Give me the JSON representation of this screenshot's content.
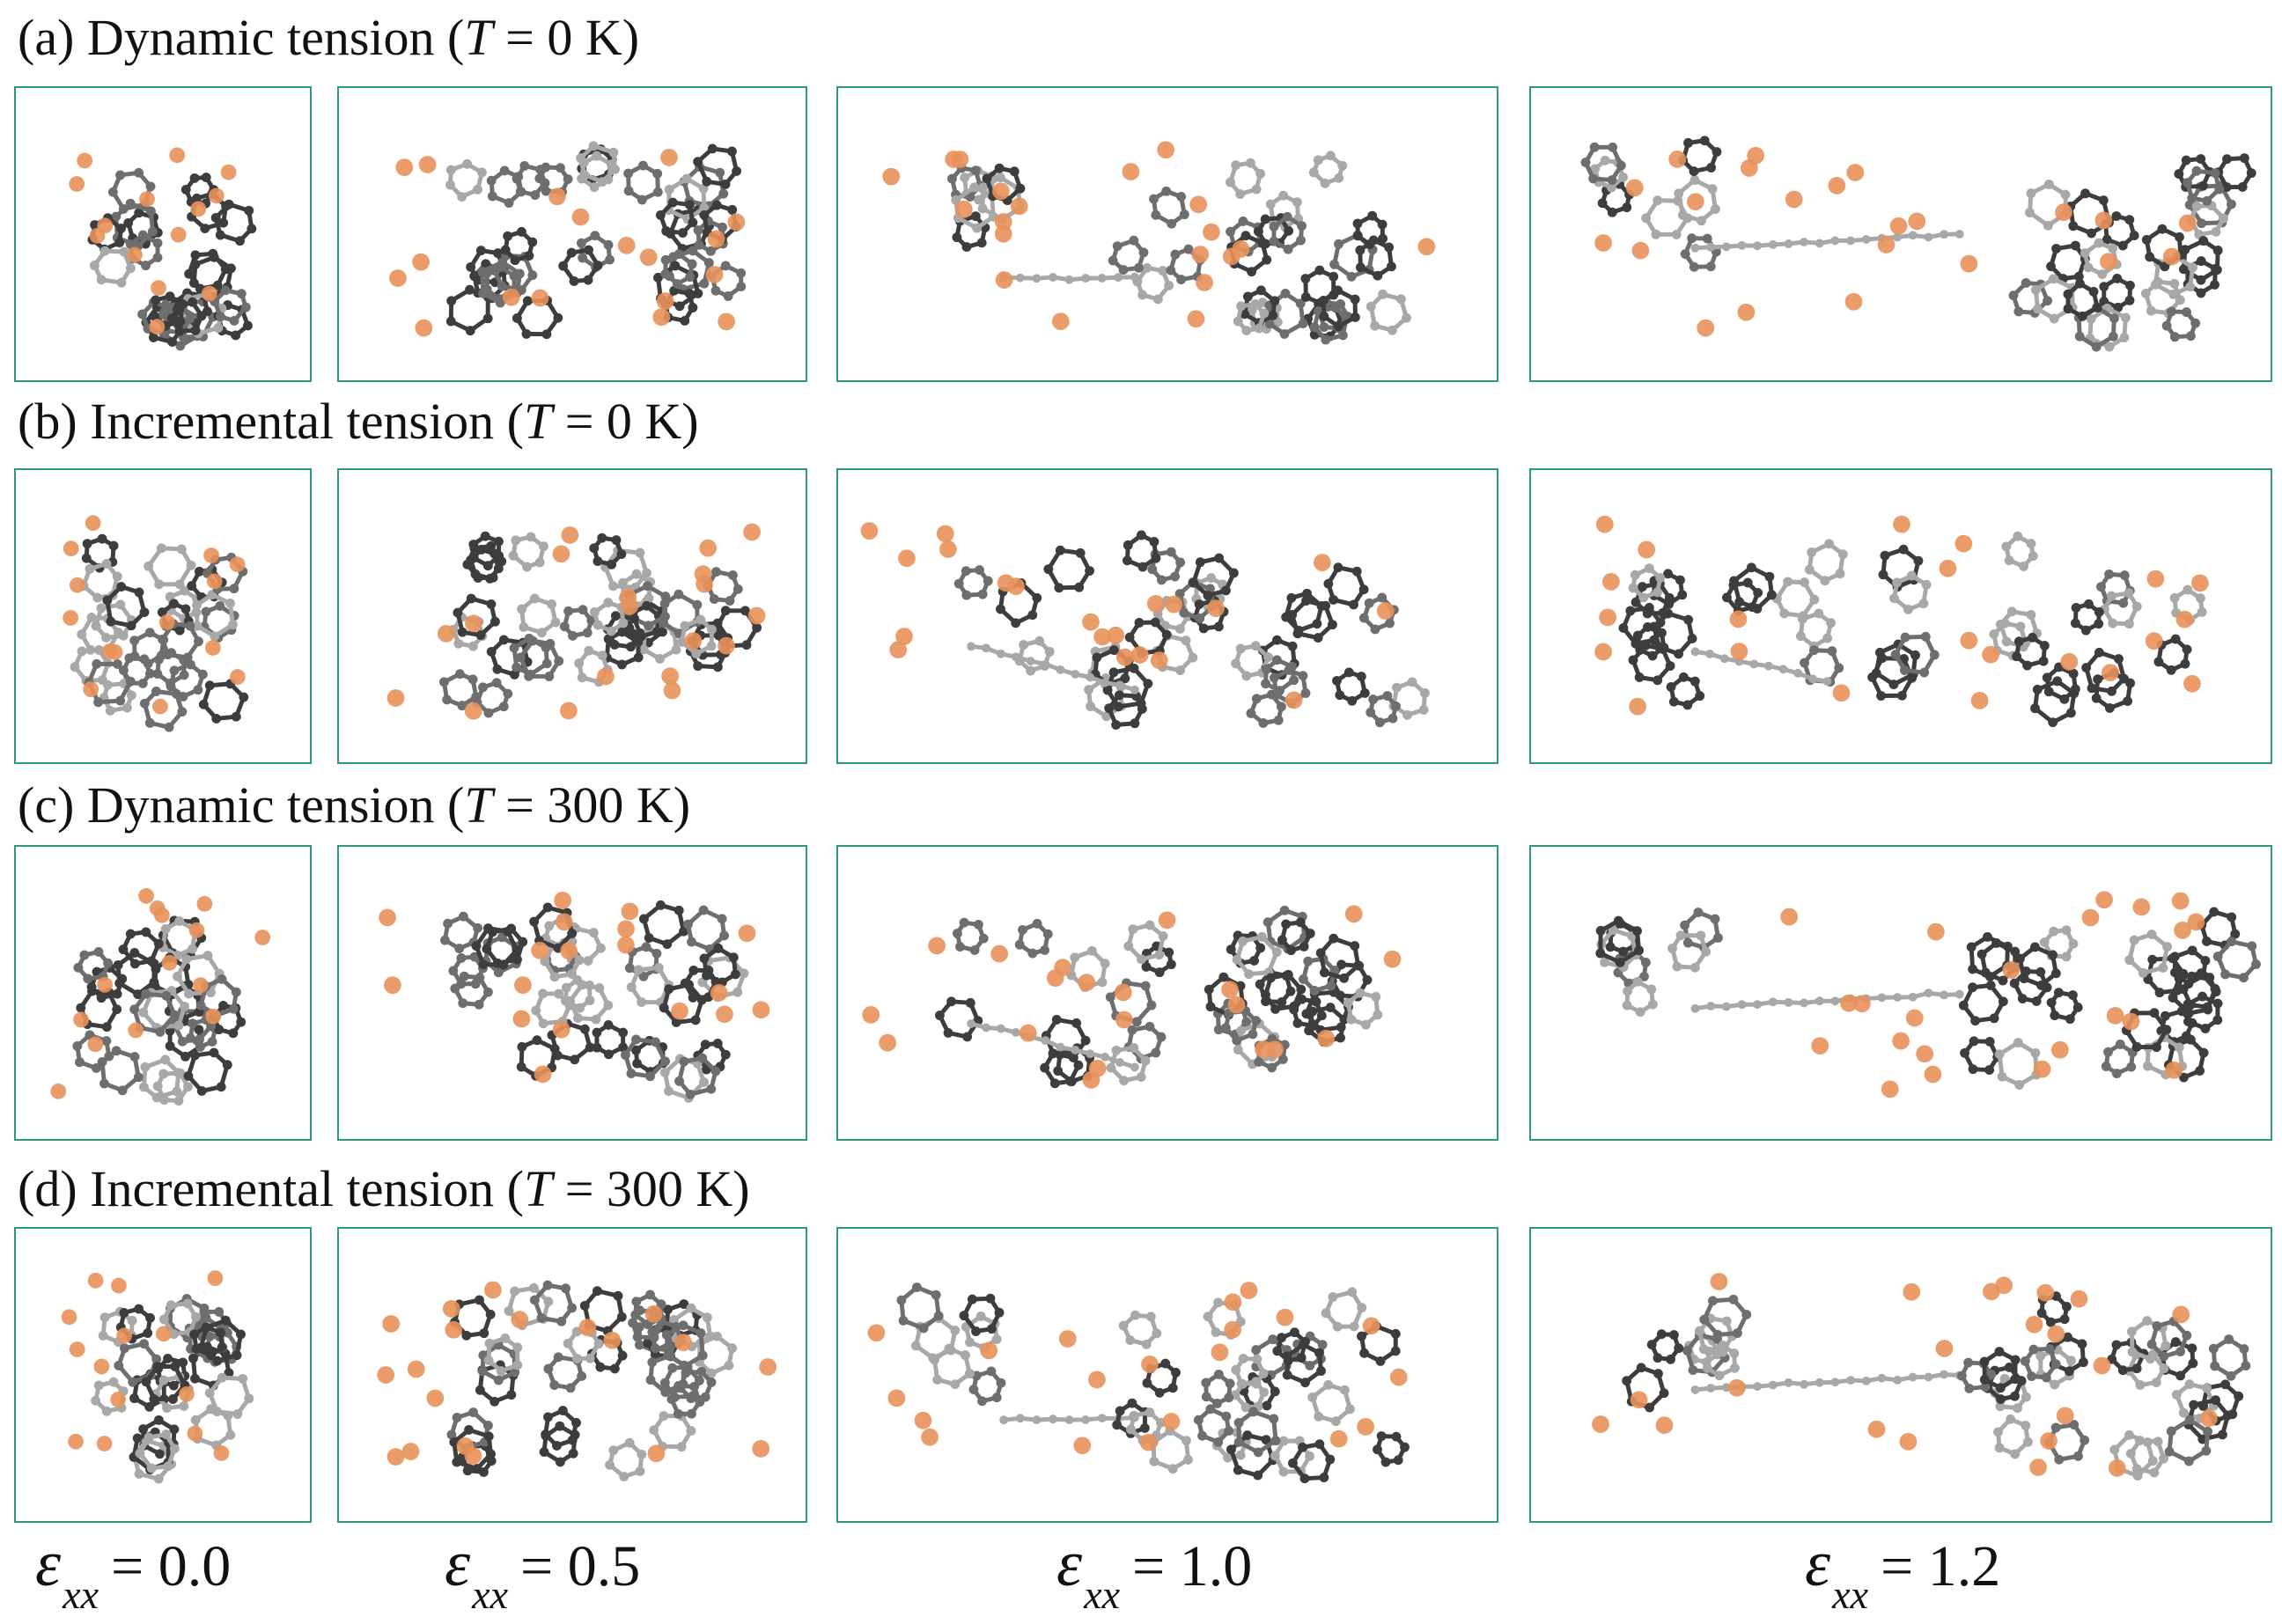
{
  "figure": {
    "rows": [
      {
        "label": "(a) Dynamic tension (",
        "temp_symbol": "T",
        "temp_rest": " = 0 K)",
        "mode": "dynamic",
        "temperature_K": 0
      },
      {
        "label": "(b) Incremental tension (",
        "temp_symbol": "T",
        "temp_rest": " = 0 K)",
        "mode": "incremental",
        "temperature_K": 0
      },
      {
        "label": "(c) Dynamic tension (",
        "temp_symbol": "T",
        "temp_rest": " = 300 K)",
        "mode": "dynamic",
        "temperature_K": 300
      },
      {
        "label": "(d) Incremental tension (",
        "temp_symbol": "T",
        "temp_rest": " = 300 K)",
        "mode": "incremental",
        "temperature_K": 300
      }
    ],
    "strains": [
      {
        "symbol": "ε",
        "subscript": "xx",
        "text": "= 0.0",
        "value": 0.0
      },
      {
        "symbol": "ε",
        "subscript": "xx",
        "text": "= 0.5",
        "value": 0.5
      },
      {
        "symbol": "ε",
        "subscript": "xx",
        "text": "= 1.0",
        "value": 1.0
      },
      {
        "symbol": "ε",
        "subscript": "xx",
        "text": "= 1.2",
        "value": 1.2
      }
    ],
    "colors": {
      "panel_border": "#2e9d6e",
      "carbon_dark": "#3d3d3d",
      "carbon_mid": "#6e6e6e",
      "carbon_light": "#a8a8a8",
      "dopant": "#e8925a"
    },
    "legend_names": {
      "carbon": "carbon-atom",
      "dopant": "dopant-atom"
    }
  }
}
